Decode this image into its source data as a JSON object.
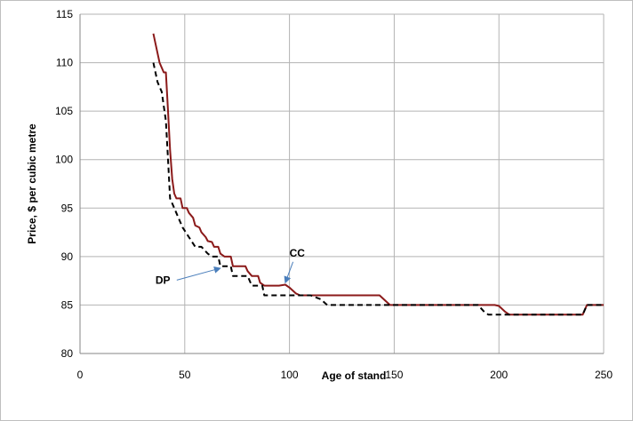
{
  "chart_data": {
    "type": "line",
    "xlabel": "Age of stand",
    "ylabel": "Price, $ per cubic metre",
    "xlim": [
      0,
      250
    ],
    "ylim": [
      80,
      115
    ],
    "x_ticks": [
      "0",
      "50",
      "100",
      "150",
      "200",
      "250"
    ],
    "y_ticks": [
      "80",
      "85",
      "90",
      "95",
      "100",
      "105",
      "110",
      "115"
    ],
    "grid": "major gridlines",
    "series": [
      {
        "name": "CC",
        "color": "#8B1A1A",
        "style": "solid",
        "points": [
          [
            35,
            113
          ],
          [
            36,
            112
          ],
          [
            38,
            110
          ],
          [
            40,
            109
          ],
          [
            41,
            109
          ],
          [
            42,
            105
          ],
          [
            43,
            101
          ],
          [
            44,
            98
          ],
          [
            45,
            96.5
          ],
          [
            46,
            96
          ],
          [
            48,
            96
          ],
          [
            49,
            95
          ],
          [
            51,
            95
          ],
          [
            52,
            94.5
          ],
          [
            54,
            94
          ],
          [
            55,
            93.2
          ],
          [
            57,
            93
          ],
          [
            58,
            92.5
          ],
          [
            60,
            92
          ],
          [
            61,
            91.6
          ],
          [
            63,
            91.5
          ],
          [
            64,
            91
          ],
          [
            66,
            91
          ],
          [
            67,
            90.3
          ],
          [
            69,
            90
          ],
          [
            72,
            90
          ],
          [
            73,
            89
          ],
          [
            79,
            89
          ],
          [
            80,
            88.5
          ],
          [
            82,
            88
          ],
          [
            85,
            88
          ],
          [
            86,
            87.3
          ],
          [
            88,
            87
          ],
          [
            90,
            87
          ],
          [
            92,
            87
          ],
          [
            95,
            87
          ],
          [
            98,
            87.1
          ],
          [
            100,
            86.8
          ],
          [
            103,
            86.2
          ],
          [
            105,
            86
          ],
          [
            110,
            86
          ],
          [
            115,
            86
          ],
          [
            140,
            86
          ],
          [
            143,
            86
          ],
          [
            145,
            85.6
          ],
          [
            148,
            85
          ],
          [
            150,
            85
          ],
          [
            160,
            85
          ],
          [
            185,
            85
          ],
          [
            195,
            85
          ],
          [
            198,
            85
          ],
          [
            200,
            84.9
          ],
          [
            203,
            84.3
          ],
          [
            205,
            84
          ],
          [
            210,
            84
          ],
          [
            238,
            84
          ],
          [
            240,
            84
          ],
          [
            242,
            85
          ],
          [
            245,
            85
          ],
          [
            250,
            85
          ]
        ]
      },
      {
        "name": "DP",
        "color": "#000000",
        "style": "dashed",
        "points": [
          [
            35,
            110
          ],
          [
            37,
            108
          ],
          [
            39,
            107
          ],
          [
            41,
            104
          ],
          [
            42,
            100
          ],
          [
            43,
            96
          ],
          [
            45,
            95
          ],
          [
            47,
            94
          ],
          [
            49,
            93
          ],
          [
            52,
            92
          ],
          [
            55,
            91
          ],
          [
            58,
            91
          ],
          [
            61,
            90.3
          ],
          [
            63,
            90
          ],
          [
            66,
            90
          ],
          [
            67,
            89
          ],
          [
            70,
            89
          ],
          [
            72,
            89
          ],
          [
            73,
            88
          ],
          [
            80,
            88
          ],
          [
            82,
            87
          ],
          [
            87,
            87
          ],
          [
            88,
            86
          ],
          [
            95,
            86
          ],
          [
            110,
            86
          ],
          [
            115,
            85.6
          ],
          [
            118,
            85
          ],
          [
            120,
            85
          ],
          [
            150,
            85
          ],
          [
            185,
            85
          ],
          [
            190,
            85
          ],
          [
            193,
            84.3
          ],
          [
            195,
            84
          ],
          [
            240,
            84
          ],
          [
            242,
            85
          ],
          [
            250,
            85
          ]
        ]
      }
    ],
    "annotations": [
      {
        "label": "CC",
        "text_at": [
          100,
          90
        ],
        "arrow_to": [
          98,
          87.3
        ]
      },
      {
        "label": "DP",
        "text_at": [
          36,
          87.2
        ],
        "arrow_to": [
          67,
          88.8
        ]
      }
    ]
  }
}
